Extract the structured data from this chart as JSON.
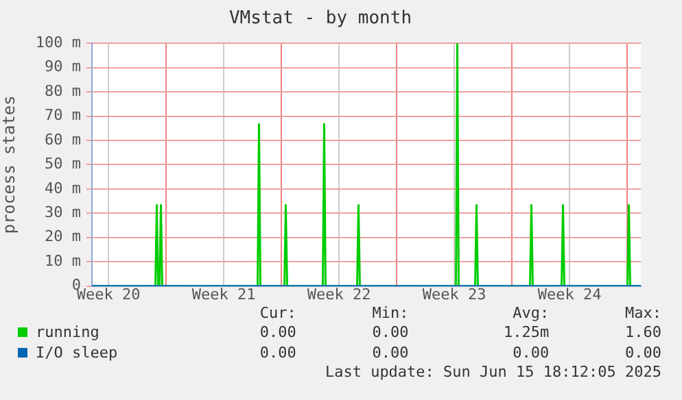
{
  "chart_data": {
    "type": "line",
    "title": "VMstat - by month",
    "ylabel": "process states",
    "xlim": [
      "2025-05-13T12:00",
      "2025-06-15T20:00"
    ],
    "xticks": [
      {
        "value": "2025-05-14T12:00",
        "label": "Week 20"
      },
      {
        "value": "2025-05-18T00:00",
        "label": null
      },
      {
        "value": "2025-05-21T12:00",
        "label": "Week 21"
      },
      {
        "value": "2025-05-25T00:00",
        "label": null
      },
      {
        "value": "2025-05-28T12:00",
        "label": "Week 22"
      },
      {
        "value": "2025-06-01T00:00",
        "label": null
      },
      {
        "value": "2025-06-04T12:00",
        "label": "Week 23"
      },
      {
        "value": "2025-06-08T00:00",
        "label": null
      },
      {
        "value": "2025-06-11T12:00",
        "label": "Week 24"
      },
      {
        "value": "2025-06-15T00:00",
        "label": null
      }
    ],
    "ylim": [
      0,
      100
    ],
    "yticks": [
      0,
      {
        "value": 10,
        "label": "10 m"
      },
      {
        "value": 20,
        "label": "20 m"
      },
      {
        "value": 30,
        "label": "30 m"
      },
      {
        "value": 40,
        "label": "40 m"
      },
      {
        "value": 50,
        "label": "50 m"
      },
      {
        "value": 60,
        "label": "60 m"
      },
      {
        "value": 70,
        "label": "70 m"
      },
      {
        "value": 80,
        "label": "80 m"
      },
      {
        "value": 90,
        "label": "90 m"
      },
      {
        "value": 100,
        "label": "100 m"
      }
    ],
    "grid": true,
    "legend": "bottom",
    "marker": "none",
    "line_style": "solid",
    "series": [
      {
        "name": "running",
        "color": "#00cc00",
        "x": [
          "2025-05-13T12:00",
          "2025-05-17T08:30",
          "2025-05-17T10:30",
          "2025-05-17T12:30",
          "2025-05-17T14:30",
          "2025-05-17T16:30",
          "2025-05-17T18:30",
          "2025-05-23T13:30",
          "2025-05-23T15:30",
          "2025-05-23T17:30",
          "2025-05-25T04:30",
          "2025-05-25T06:30",
          "2025-05-25T08:30",
          "2025-05-27T12:30",
          "2025-05-27T14:30",
          "2025-05-27T16:30",
          "2025-05-29T14:30",
          "2025-05-29T16:30",
          "2025-05-29T18:30",
          "2025-06-04T14:30",
          "2025-06-04T16:30",
          "2025-06-04T18:30",
          "2025-06-05T18:30",
          "2025-06-05T20:30",
          "2025-06-05T22:30",
          "2025-06-09T02:30",
          "2025-06-09T04:30",
          "2025-06-09T06:30",
          "2025-06-11T00:30",
          "2025-06-11T02:30",
          "2025-06-11T04:30",
          "2025-06-15T00:30",
          "2025-06-15T02:30",
          "2025-06-15T04:30",
          "2025-06-15T20:00"
        ],
        "values": [
          0,
          0,
          33.3,
          0,
          0,
          33.3,
          0,
          0,
          66.7,
          0,
          0,
          33.3,
          0,
          0,
          66.7,
          0,
          0,
          33.3,
          0,
          0,
          100,
          0,
          0,
          33.3,
          0,
          0,
          33.3,
          0,
          0,
          33.3,
          0,
          0,
          33.3,
          0,
          0
        ]
      },
      {
        "name": "I/O sleep",
        "color": "#0066b3",
        "x": [
          "2025-05-13T12:00",
          "2025-06-15T20:00"
        ],
        "values": [
          0,
          0
        ]
      }
    ],
    "annotations": [
      "Cur:",
      "Min:",
      "Avg:",
      "Max:",
      "0.00",
      "0.00",
      "1.25m",
      "1.60",
      "0.00",
      "0.00",
      "0.00",
      "0.00",
      "Last update: Sun Jun 15 18:12:05 2025"
    ]
  }
}
